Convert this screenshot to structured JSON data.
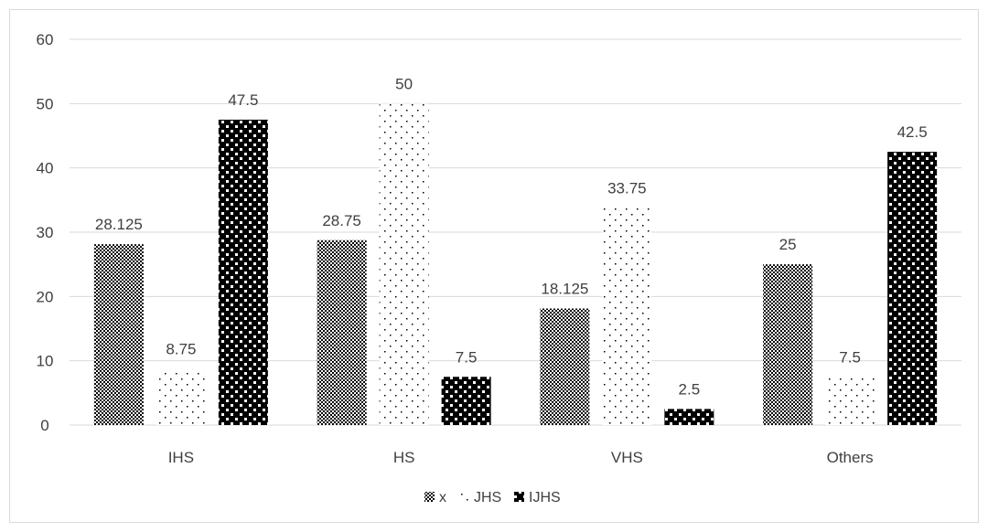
{
  "chart_data": {
    "type": "bar",
    "categories": [
      "IHS",
      "HS",
      "VHS",
      "Others"
    ],
    "series": [
      {
        "name": "x",
        "values": [
          28.125,
          28.75,
          18.125,
          25
        ],
        "labels": [
          "28.125",
          "28.75",
          "18.125",
          "25"
        ],
        "pattern": "checker"
      },
      {
        "name": "JHS",
        "values": [
          8.75,
          50,
          33.75,
          7.5
        ],
        "labels": [
          "8.75",
          "50",
          "33.75",
          "7.5"
        ],
        "pattern": "dots"
      },
      {
        "name": "IJHS",
        "values": [
          47.5,
          7.5,
          2.5,
          42.5
        ],
        "labels": [
          "47.5",
          "7.5",
          "2.5",
          "42.5"
        ],
        "pattern": "bigcheck"
      }
    ],
    "yticks": [
      "0",
      "10",
      "20",
      "30",
      "40",
      "50",
      "60"
    ],
    "ylim": [
      0,
      60
    ],
    "grid": true,
    "legend": "bottom",
    "colors": {
      "grid": "#d9d9d9",
      "text": "#404040",
      "bar": "#000000"
    }
  }
}
